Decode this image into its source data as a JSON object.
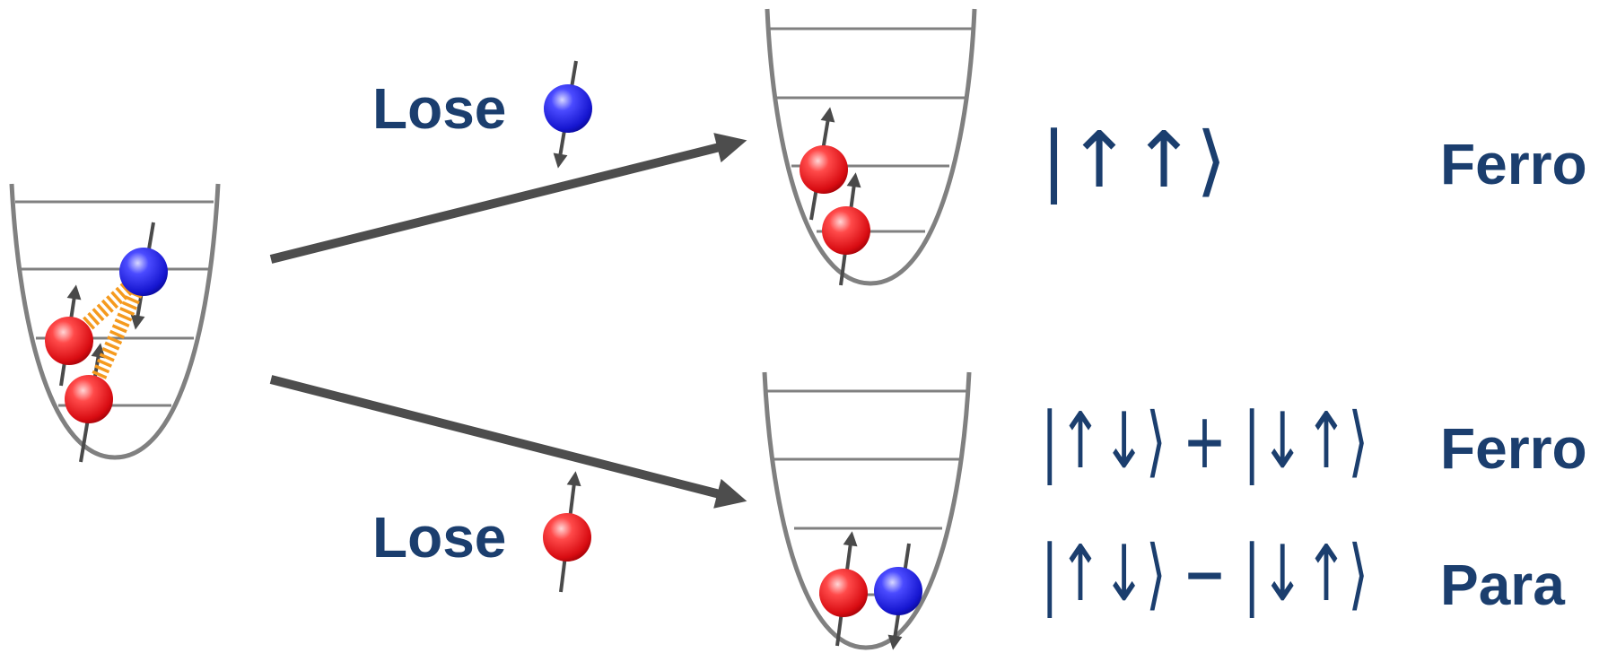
{
  "diagram": {
    "lose_top_label": "Lose",
    "lose_bottom_label": "Lose",
    "state_top": "|↑↑⟩",
    "state_plus": "|↑↓⟩ + |↓↑⟩",
    "state_minus": "|↑↓⟩ − |↓↑⟩",
    "label_ferro_top": "Ferro",
    "label_ferro_mid": "Ferro",
    "label_para": "Para",
    "colors": {
      "text": "#1b3e6e",
      "trap": "#808080",
      "arrow": "#4d4d4d",
      "spin_up_ball": "#e8141b",
      "spin_down_ball": "#1c1ce0",
      "interaction_spring": "#f59a1e"
    },
    "icons": [
      "red-atom-icon",
      "blue-atom-icon",
      "spin-arrow-icon",
      "interaction-spring-icon"
    ]
  }
}
